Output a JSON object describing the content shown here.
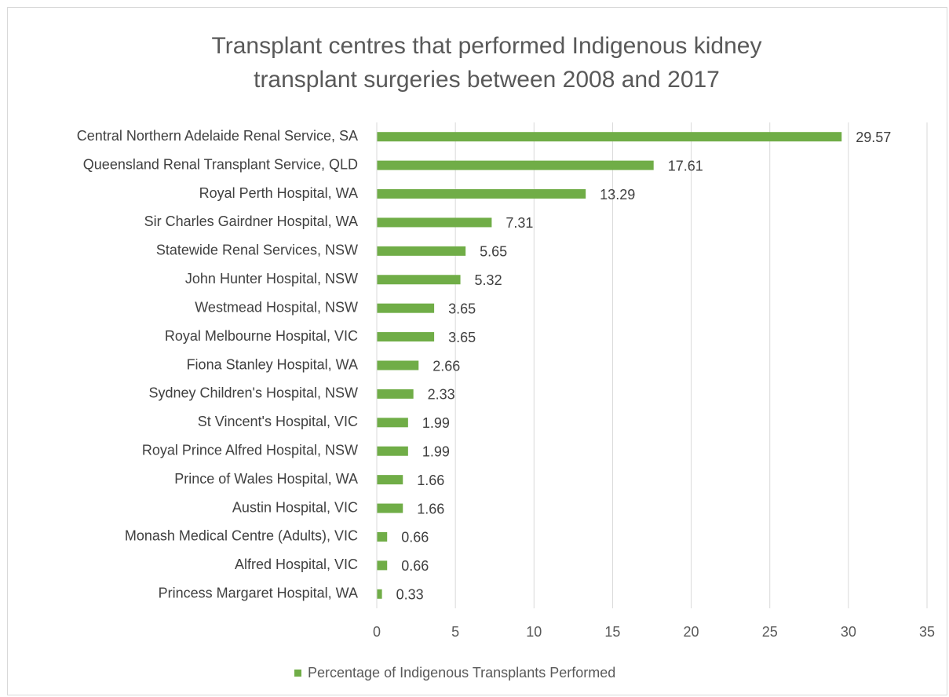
{
  "chart_data": {
    "type": "bar",
    "orientation": "horizontal",
    "title": [
      "Transplant centres that performed Indigenous kidney",
      "transplant surgeries between 2008 and 2017"
    ],
    "categories": [
      "Central Northern Adelaide Renal Service, SA",
      "Queensland Renal Transplant Service, QLD",
      "Royal Perth Hospital, WA",
      "Sir Charles Gairdner Hospital, WA",
      "Statewide Renal Services, NSW",
      "John Hunter Hospital, NSW",
      "Westmead Hospital, NSW",
      "Royal Melbourne Hospital, VIC",
      "Fiona Stanley Hospital, WA",
      "Sydney Children's Hospital, NSW",
      "St Vincent's Hospital, VIC",
      "Royal Prince Alfred Hospital, NSW",
      "Prince of Wales Hospital, WA",
      "Austin Hospital, VIC",
      "Monash Medical Centre (Adults), VIC",
      "Alfred Hospital, VIC",
      "Princess Margaret Hospital, WA"
    ],
    "series": [
      {
        "name": "Percentage of Indigenous Transplants Performed",
        "color": "#70ad47",
        "values": [
          29.57,
          17.61,
          13.29,
          7.31,
          5.65,
          5.32,
          3.65,
          3.65,
          2.66,
          2.33,
          1.99,
          1.99,
          1.66,
          1.66,
          0.66,
          0.66,
          0.33
        ]
      }
    ],
    "xlim": [
      0,
      35
    ],
    "xticks": [
      0,
      5,
      10,
      15,
      20,
      25,
      30,
      35
    ],
    "grid": true,
    "legend": "bottom"
  }
}
